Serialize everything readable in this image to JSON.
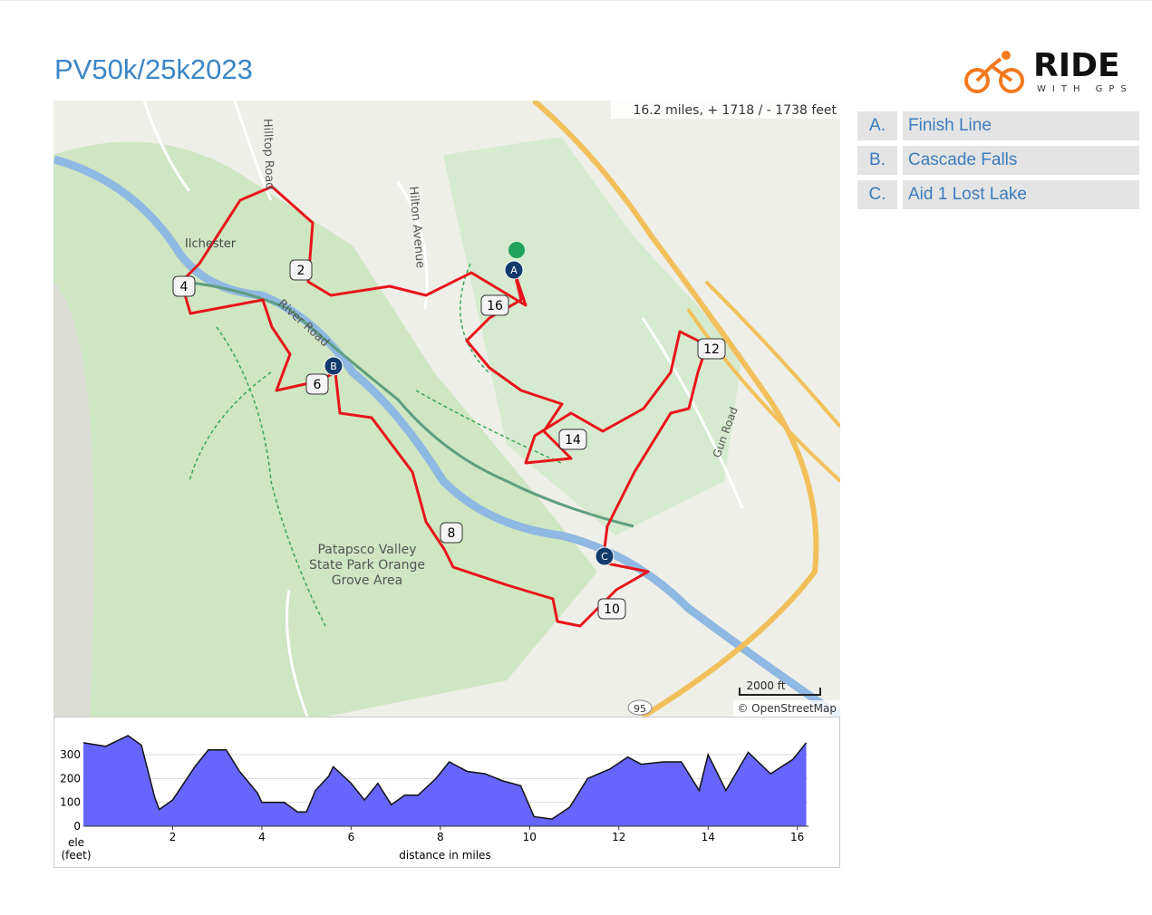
{
  "header": {
    "title": "PV50k/25k2023",
    "logo_main": "RIDE",
    "logo_sub": "WITH GPS"
  },
  "map": {
    "summary": "16.2 miles, + 1718 / - 1738 feet",
    "places": [
      "Ilchester",
      "Hilltop Road",
      "Hilton Avenue",
      "River Road",
      "Gun Road",
      "Patapsco Valley",
      "State Park Orange",
      "Grove Area",
      "95"
    ],
    "mile_markers": [
      "2",
      "4",
      "6",
      "8",
      "10",
      "12",
      "14",
      "16"
    ],
    "poi_markers": [
      "A",
      "B",
      "C"
    ],
    "scale": "2000 ft",
    "attribution": "© OpenStreetMap"
  },
  "cues": [
    {
      "letter": "A.",
      "name": "Finish Line"
    },
    {
      "letter": "B.",
      "name": "Cascade Falls"
    },
    {
      "letter": "C.",
      "name": "Aid 1 Lost Lake"
    }
  ],
  "elevation": {
    "type": "area",
    "color": "#6666ff",
    "x": [
      0,
      0.5,
      1.0,
      1.3,
      1.6,
      1.7,
      2.0,
      2.5,
      2.8,
      3.2,
      3.5,
      3.9,
      4.0,
      4.5,
      4.8,
      5.0,
      5.2,
      5.5,
      5.6,
      6.0,
      6.3,
      6.6,
      6.9,
      7.2,
      7.5,
      7.9,
      8.2,
      8.6,
      9.0,
      9.4,
      9.8,
      10.1,
      10.5,
      10.9,
      11.3,
      11.8,
      12.2,
      12.5,
      13.0,
      13.4,
      13.8,
      14.0,
      14.4,
      14.9,
      15.4,
      15.9,
      16.2
    ],
    "values": [
      350,
      335,
      380,
      340,
      120,
      70,
      110,
      250,
      320,
      320,
      230,
      140,
      100,
      100,
      60,
      60,
      150,
      210,
      250,
      180,
      110,
      180,
      90,
      130,
      130,
      200,
      270,
      230,
      220,
      190,
      170,
      40,
      30,
      80,
      200,
      240,
      290,
      260,
      270,
      270,
      150,
      300,
      150,
      310,
      220,
      280,
      350
    ],
    "xlim": [
      0,
      16.25
    ],
    "ylim": [
      0,
      380
    ],
    "xticks": [
      2,
      4,
      6,
      8,
      10,
      12,
      14,
      16
    ],
    "yticks": [
      0,
      100,
      200,
      300
    ],
    "y_label_1": "ele",
    "y_label_2": "(feet)",
    "x_label": "distance in miles",
    "grid": true
  }
}
